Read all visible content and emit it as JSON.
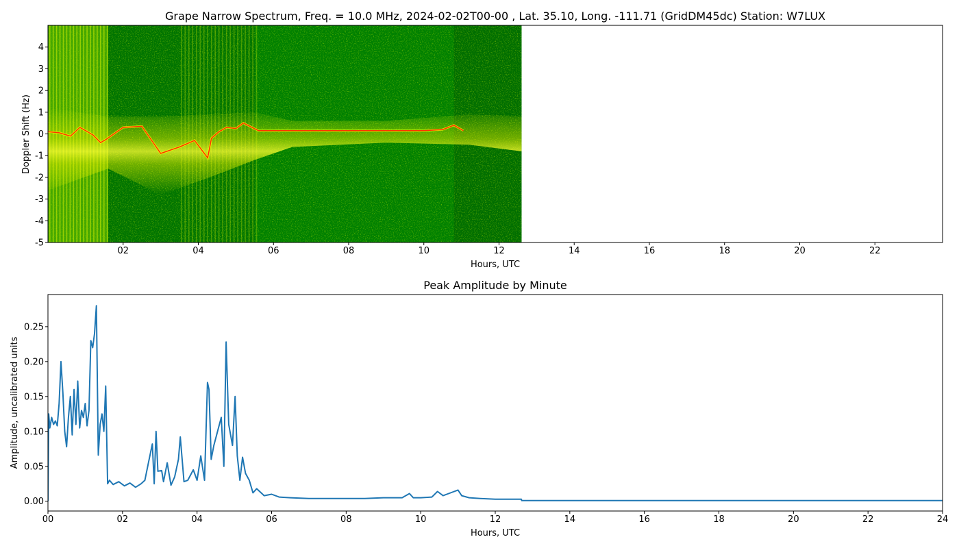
{
  "chart_data": [
    {
      "type": "heatmap",
      "title": "Grape Narrow Spectrum, Freq. = 10.0 MHz, 2024-02-02T00-00 , Lat.  35.10, Long. -111.71 (GridDM45dc) Station: W7LUX",
      "xlabel": "Hours, UTC",
      "ylabel": "Doppler Shift (Hz)",
      "xlim": [
        0,
        23.8
      ],
      "ylim": [
        -5,
        5
      ],
      "x_ticks": [
        "02",
        "04",
        "06",
        "08",
        "10",
        "12",
        "14",
        "16",
        "18",
        "20",
        "22"
      ],
      "x_tick_values": [
        2,
        4,
        6,
        8,
        10,
        12,
        14,
        16,
        18,
        20,
        22
      ],
      "y_ticks": [
        "-5",
        "-4",
        "-3",
        "-2",
        "-1",
        "0",
        "1",
        "2",
        "3",
        "4"
      ],
      "y_tick_values": [
        -5,
        -4,
        -3,
        -2,
        -1,
        0,
        1,
        2,
        3,
        4
      ],
      "data_end_hour": 12.6,
      "colors": {
        "background_signal": "#008000",
        "medium_signal": "#c8e600",
        "strong_signal": "#ffff00",
        "peak_signal": "#ff3000"
      },
      "peak_trace": {
        "x": [
          0.0,
          0.3,
          0.6,
          0.85,
          1.0,
          1.2,
          1.4,
          1.55,
          2.0,
          2.5,
          3.0,
          3.5,
          3.9,
          4.25,
          4.35,
          4.55,
          4.75,
          5.0,
          5.2,
          5.6,
          6.0,
          7.0,
          8.0,
          9.0,
          10.0,
          10.5,
          10.8,
          11.05
        ],
        "y": [
          0.1,
          0.05,
          -0.1,
          0.3,
          0.15,
          -0.05,
          -0.4,
          -0.25,
          0.3,
          0.35,
          -0.9,
          -0.6,
          -0.3,
          -1.1,
          -0.2,
          0.1,
          0.3,
          0.25,
          0.5,
          0.15,
          0.15,
          0.15,
          0.15,
          0.15,
          0.15,
          0.2,
          0.4,
          0.15
        ]
      }
    },
    {
      "type": "line",
      "title": "Peak Amplitude by Minute",
      "xlabel": "Hours, UTC",
      "ylabel": "Amplitude, uncalibrated units",
      "xlim": [
        0,
        24
      ],
      "ylim": [
        -0.014,
        0.296
      ],
      "x_ticks": [
        "00",
        "02",
        "04",
        "06",
        "08",
        "10",
        "12",
        "14",
        "16",
        "18",
        "20",
        "22",
        "24"
      ],
      "x_tick_values": [
        0,
        2,
        4,
        6,
        8,
        10,
        12,
        14,
        16,
        18,
        20,
        22,
        24
      ],
      "y_ticks": [
        "0.00",
        "0.05",
        "0.10",
        "0.15",
        "0.20",
        "0.25"
      ],
      "y_tick_values": [
        0.0,
        0.05,
        0.1,
        0.15,
        0.2,
        0.25
      ],
      "line_color": "#1f77b4",
      "series": [
        {
          "x": [
            0.0,
            0.02,
            0.05,
            0.1,
            0.15,
            0.2,
            0.25,
            0.3,
            0.35,
            0.4,
            0.45,
            0.5,
            0.55,
            0.6,
            0.65,
            0.7,
            0.75,
            0.8,
            0.85,
            0.9,
            0.95,
            1.0,
            1.05,
            1.1,
            1.15,
            1.2,
            1.25,
            1.3,
            1.35,
            1.4,
            1.45,
            1.5,
            1.55,
            1.6,
            1.65,
            1.75,
            1.9,
            2.05,
            2.2,
            2.35,
            2.5,
            2.6,
            2.7,
            2.8,
            2.85,
            2.9,
            2.95,
            3.05,
            3.1,
            3.2,
            3.3,
            3.4,
            3.5,
            3.55,
            3.65,
            3.75,
            3.9,
            4.0,
            4.1,
            4.2,
            4.28,
            4.32,
            4.38,
            4.45,
            4.55,
            4.65,
            4.72,
            4.78,
            4.85,
            4.95,
            5.02,
            5.08,
            5.15,
            5.22,
            5.3,
            5.4,
            5.5,
            5.6,
            5.8,
            6.0,
            6.2,
            6.5,
            7.0,
            8.0,
            8.5,
            9.0,
            9.5,
            9.7,
            9.8,
            10.0,
            10.3,
            10.45,
            10.6,
            10.8,
            11.0,
            11.1,
            11.3,
            11.6,
            12.0,
            12.7,
            12.71,
            13.0,
            14.0,
            16.0,
            18.0,
            20.0,
            22.0,
            24.0
          ],
          "y": [
            0.0,
            0.125,
            0.105,
            0.12,
            0.11,
            0.115,
            0.108,
            0.14,
            0.2,
            0.155,
            0.1,
            0.078,
            0.12,
            0.15,
            0.095,
            0.16,
            0.11,
            0.172,
            0.105,
            0.13,
            0.12,
            0.14,
            0.108,
            0.13,
            0.23,
            0.22,
            0.24,
            0.28,
            0.066,
            0.11,
            0.125,
            0.1,
            0.165,
            0.025,
            0.03,
            0.024,
            0.028,
            0.022,
            0.026,
            0.02,
            0.025,
            0.03,
            0.056,
            0.082,
            0.025,
            0.1,
            0.043,
            0.044,
            0.028,
            0.055,
            0.023,
            0.035,
            0.06,
            0.092,
            0.028,
            0.03,
            0.045,
            0.03,
            0.065,
            0.03,
            0.17,
            0.16,
            0.06,
            0.08,
            0.1,
            0.12,
            0.05,
            0.228,
            0.11,
            0.08,
            0.15,
            0.065,
            0.03,
            0.063,
            0.04,
            0.03,
            0.012,
            0.018,
            0.008,
            0.01,
            0.006,
            0.005,
            0.004,
            0.004,
            0.004,
            0.005,
            0.005,
            0.011,
            0.005,
            0.005,
            0.006,
            0.014,
            0.008,
            0.012,
            0.016,
            0.008,
            0.005,
            0.004,
            0.003,
            0.003,
            0.001,
            0.001,
            0.001,
            0.001,
            0.001,
            0.001,
            0.001,
            0.001
          ]
        }
      ]
    }
  ]
}
